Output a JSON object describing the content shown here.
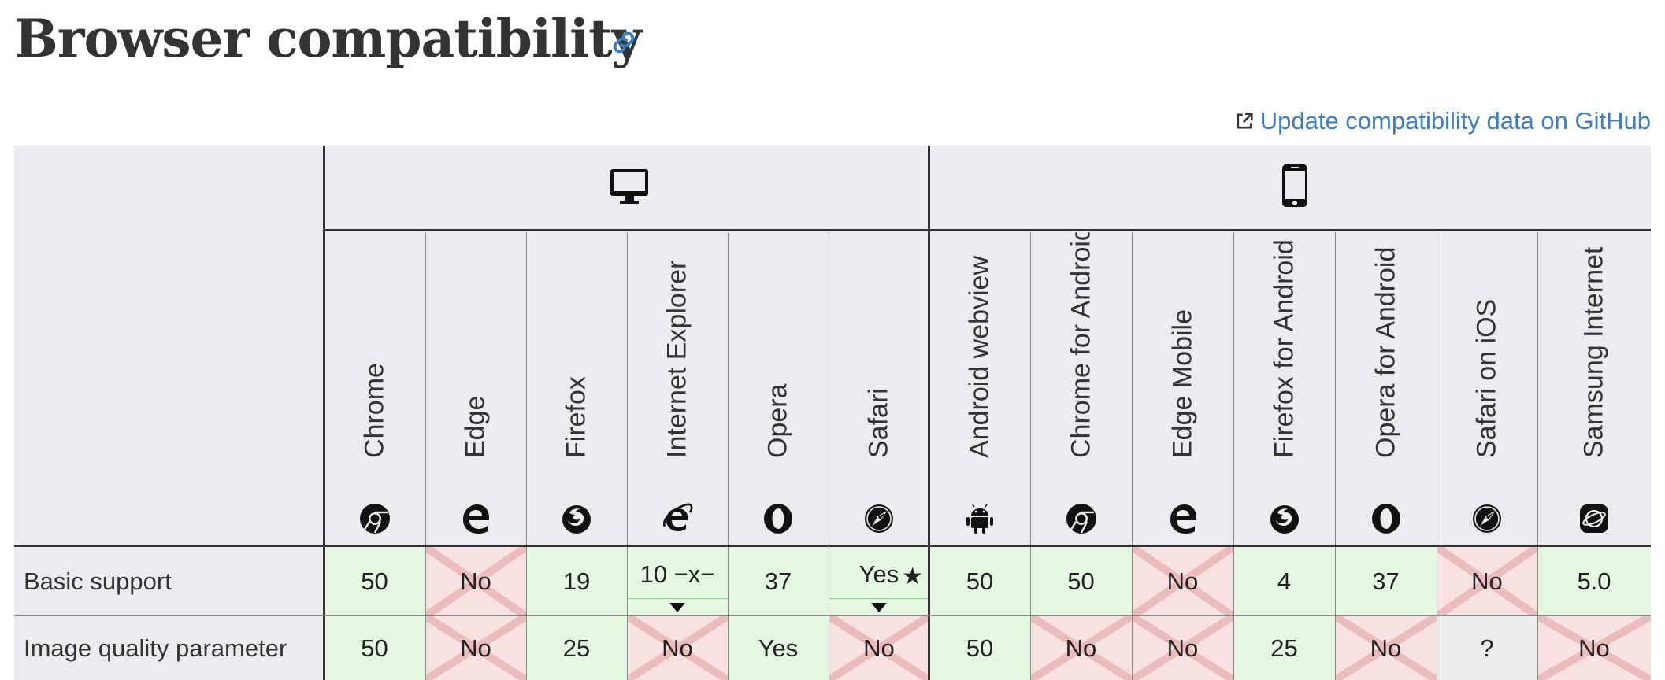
{
  "page": {
    "title": "Browser compatibility",
    "github_link": "Update compatibility data on GitHub"
  },
  "platforms": [
    {
      "name": "desktop",
      "icon": "desktop-icon"
    },
    {
      "name": "mobile",
      "icon": "mobile-icon"
    }
  ],
  "browsers": [
    {
      "name": "Chrome",
      "icon": "chrome-icon",
      "platform": "desktop"
    },
    {
      "name": "Edge",
      "icon": "edge-icon",
      "platform": "desktop"
    },
    {
      "name": "Firefox",
      "icon": "firefox-icon",
      "platform": "desktop"
    },
    {
      "name": "Internet Explorer",
      "icon": "ie-icon",
      "platform": "desktop"
    },
    {
      "name": "Opera",
      "icon": "opera-icon",
      "platform": "desktop"
    },
    {
      "name": "Safari",
      "icon": "safari-icon",
      "platform": "desktop"
    },
    {
      "name": "Android webview",
      "icon": "android-icon",
      "platform": "mobile"
    },
    {
      "name": "Chrome for Android",
      "icon": "chrome-icon",
      "platform": "mobile"
    },
    {
      "name": "Edge Mobile",
      "icon": "edge-icon",
      "platform": "mobile"
    },
    {
      "name": "Firefox for Android",
      "icon": "firefox-icon",
      "platform": "mobile"
    },
    {
      "name": "Opera for Android",
      "icon": "opera-icon",
      "platform": "mobile"
    },
    {
      "name": "Safari on iOS",
      "icon": "safari-icon",
      "platform": "mobile"
    },
    {
      "name": "Samsung Internet",
      "icon": "samsung-icon",
      "platform": "mobile"
    }
  ],
  "features": [
    {
      "name": "Basic support",
      "cells": [
        {
          "text": "50",
          "status": "yes"
        },
        {
          "text": "No",
          "status": "no"
        },
        {
          "text": "19",
          "status": "yes"
        },
        {
          "text": "10 −x−",
          "status": "yes",
          "toggle": true
        },
        {
          "text": "37",
          "status": "yes"
        },
        {
          "text": "Yes",
          "status": "yes",
          "toggle": true,
          "note": "★"
        },
        {
          "text": "50",
          "status": "yes"
        },
        {
          "text": "50",
          "status": "yes"
        },
        {
          "text": "No",
          "status": "no"
        },
        {
          "text": "4",
          "status": "yes"
        },
        {
          "text": "37",
          "status": "yes"
        },
        {
          "text": "No",
          "status": "no"
        },
        {
          "text": "5.0",
          "status": "yes"
        }
      ]
    },
    {
      "name": "Image quality parameter",
      "cells": [
        {
          "text": "50",
          "status": "yes"
        },
        {
          "text": "No",
          "status": "no"
        },
        {
          "text": "25",
          "status": "yes"
        },
        {
          "text": "No",
          "status": "no"
        },
        {
          "text": "Yes",
          "status": "yes"
        },
        {
          "text": "No",
          "status": "no"
        },
        {
          "text": "50",
          "status": "yes"
        },
        {
          "text": "No",
          "status": "no"
        },
        {
          "text": "No",
          "status": "no"
        },
        {
          "text": "25",
          "status": "yes"
        },
        {
          "text": "No",
          "status": "no"
        },
        {
          "text": "?",
          "status": "unknown"
        },
        {
          "text": "No",
          "status": "no"
        }
      ]
    }
  ],
  "colors": {
    "link": "#3d7ec0",
    "yes_bg": "#e4f8e1",
    "no_bg": "#f8e1e1",
    "unknown_bg": "#ececec",
    "header_bg": "#ececf0",
    "x_mark": "#ebbcbc"
  }
}
